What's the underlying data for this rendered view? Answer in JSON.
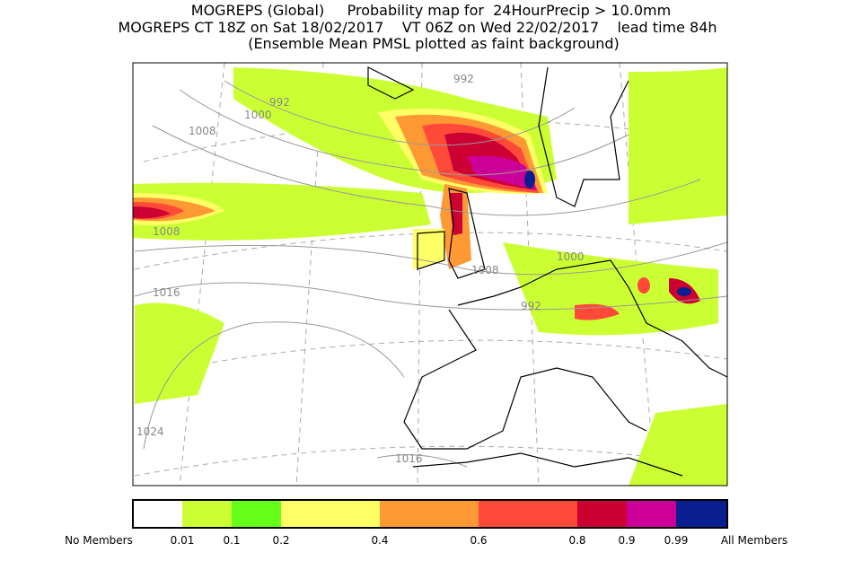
{
  "header": {
    "lines": [
      "MOGREPS (Global)     Probability map for  24HourPrecip > 10.0mm",
      "MOGREPS CT 18Z on Sat 18/02/2017    VT 06Z on Wed 22/02/2017    lead time 84h",
      "(Ensemble Mean PMSL plotted as faint background)"
    ]
  },
  "map": {
    "contour_labels": [
      "992",
      "1000",
      "1008",
      "1008",
      "1016",
      "1024",
      "1016",
      "1008",
      "1000",
      "992",
      "992"
    ]
  },
  "legend": {
    "labels": [
      "No Members",
      "0.01",
      "0.1",
      "0.2",
      "0.4",
      "0.6",
      "0.8",
      "0.9",
      "0.99",
      "All Members"
    ],
    "colors": [
      "#ffffff",
      "#ccff33",
      "#66ff19",
      "#ffff66",
      "#ff9933",
      "#ff4a3a",
      "#cc0033",
      "#cc0099",
      "#0a1f8f"
    ]
  }
}
